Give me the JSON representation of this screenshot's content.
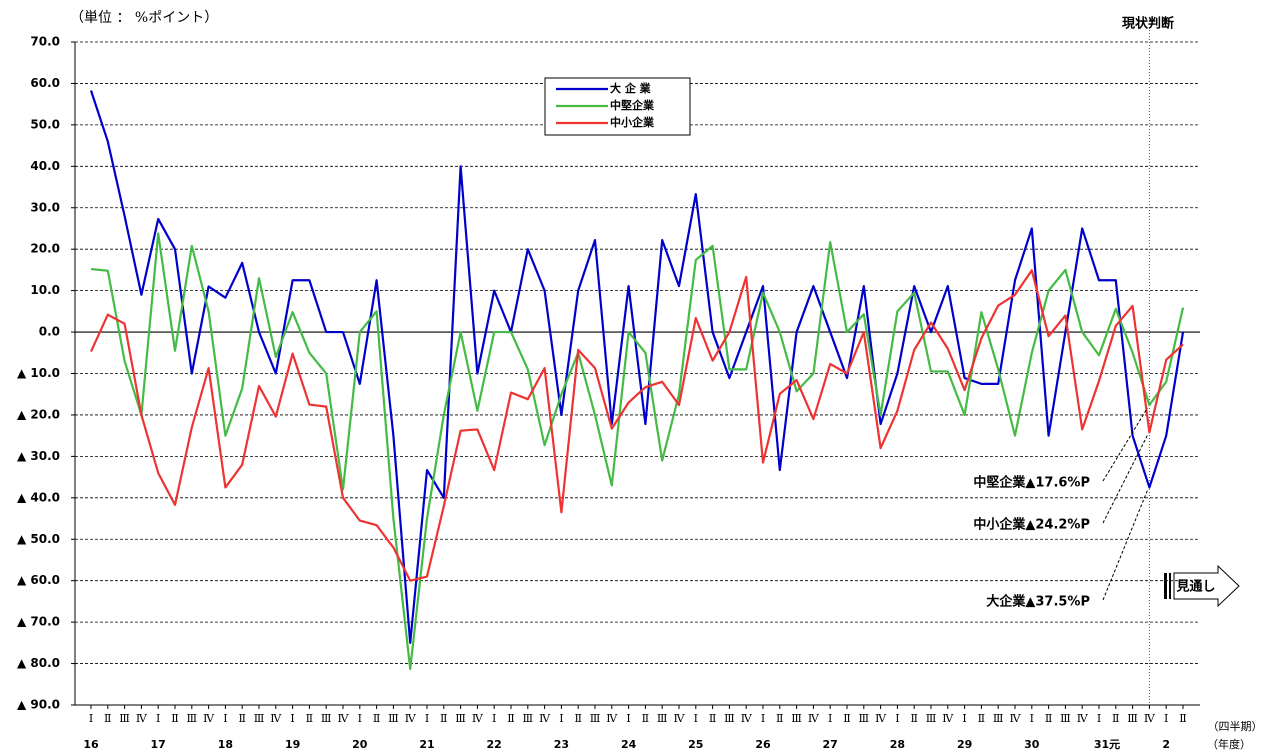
{
  "chart_data": {
    "type": "line",
    "unit_label": "（単位 ： %ポイント）",
    "current_label": "現状判断",
    "forecast_label": "見通し",
    "x_unit_labels": [
      "（四半期）",
      "（年度）"
    ],
    "categories": [
      "Ⅰ",
      "Ⅱ",
      "Ⅲ",
      "Ⅳ",
      "Ⅰ",
      "Ⅱ",
      "Ⅲ",
      "Ⅳ",
      "Ⅰ",
      "Ⅱ",
      "Ⅲ",
      "Ⅳ",
      "Ⅰ",
      "Ⅱ",
      "Ⅲ",
      "Ⅳ",
      "Ⅰ",
      "Ⅱ",
      "Ⅲ",
      "Ⅳ",
      "Ⅰ",
      "Ⅱ",
      "Ⅲ",
      "Ⅳ",
      "Ⅰ",
      "Ⅱ",
      "Ⅲ",
      "Ⅳ",
      "Ⅰ",
      "Ⅱ",
      "Ⅲ",
      "Ⅳ",
      "Ⅰ",
      "Ⅱ",
      "Ⅲ",
      "Ⅳ",
      "Ⅰ",
      "Ⅱ",
      "Ⅲ",
      "Ⅳ",
      "Ⅰ",
      "Ⅱ",
      "Ⅲ",
      "Ⅳ",
      "Ⅰ",
      "Ⅱ",
      "Ⅲ",
      "Ⅳ",
      "Ⅰ",
      "Ⅱ",
      "Ⅲ",
      "Ⅳ",
      "Ⅰ",
      "Ⅱ",
      "Ⅲ",
      "Ⅳ",
      "Ⅰ",
      "Ⅱ",
      "Ⅲ",
      "Ⅳ",
      "Ⅰ",
      "Ⅱ",
      "Ⅲ",
      "Ⅳ",
      "Ⅰ",
      "Ⅱ"
    ],
    "years": [
      "16",
      "17",
      "18",
      "19",
      "20",
      "21",
      "22",
      "23",
      "24",
      "25",
      "26",
      "27",
      "28",
      "29",
      "30",
      "31元",
      "2"
    ],
    "ylim": [
      -90,
      70
    ],
    "yticks": [
      70,
      {
        "value": 60,
        "label": "60.0"
      },
      {
        "value": 50,
        "label": "50.0"
      },
      {
        "value": 40,
        "label": "40.0"
      },
      {
        "value": 30,
        "label": "30.0"
      },
      {
        "value": 20,
        "label": "20.0"
      },
      {
        "value": 10,
        "label": "10.0"
      },
      {
        "value": 0,
        "label": "0.0"
      },
      {
        "value": -10,
        "label": "▲ 10.0"
      },
      {
        "value": -20,
        "label": "▲ 20.0"
      },
      {
        "value": -30,
        "label": "▲ 30.0"
      },
      {
        "value": -40,
        "label": "▲ 40.0"
      },
      {
        "value": -50,
        "label": "▲ 50.0"
      },
      {
        "value": -60,
        "label": "▲ 60.0"
      },
      {
        "value": -70,
        "label": "▲ 70.0"
      },
      {
        "value": -80,
        "label": "▲ 80.0"
      },
      {
        "value": -90,
        "label": "▲ 90.0"
      }
    ],
    "ytick_top_label": "70.0",
    "grid": true,
    "series": [
      {
        "name": "大 企 業",
        "color": "#0000cc",
        "values": [
          58.3,
          46,
          28,
          9,
          27.3,
          20,
          -10,
          11,
          8.3,
          16.7,
          0,
          -10,
          12.5,
          12.5,
          0,
          0,
          -12.5,
          12.5,
          -25,
          -75,
          -33.3,
          -40,
          40,
          -10,
          10,
          0,
          20,
          10,
          -20,
          10,
          22.2,
          -22.2,
          11.1,
          -22.2,
          22.2,
          11.1,
          33.3,
          0,
          -11.1,
          0,
          11.1,
          -33.3,
          0,
          11.1,
          0,
          -11.1,
          11.1,
          -22.2,
          -10,
          11.1,
          0,
          11.1,
          -11.1,
          -12.5,
          -12.5,
          12.5,
          25,
          -25,
          0,
          25,
          12.5,
          12.5,
          -25,
          -37.5,
          -25,
          0
        ]
      },
      {
        "name": "中堅企業",
        "color": "#44bb44",
        "values": [
          15.2,
          14.8,
          -7,
          -20,
          23.8,
          -4.5,
          20.8,
          5,
          -25,
          -13.6,
          13,
          -6,
          4.8,
          -5,
          -10,
          -38,
          0,
          5,
          -45,
          -81.3,
          -45,
          -20,
          0,
          -19,
          0,
          0,
          -9,
          -27.3,
          -15,
          -5,
          -20,
          -37,
          0,
          -5,
          -31,
          -15,
          17.4,
          20.8,
          -9,
          -9,
          9.5,
          0,
          -14.3,
          -10,
          21.7,
          0,
          4.3,
          -20,
          5,
          9.5,
          -9.5,
          -9.5,
          -20,
          4.8,
          -9,
          -25,
          -5,
          10,
          15,
          0,
          -5.6,
          5.6,
          -5,
          -17.6,
          -12,
          5.9
        ]
      },
      {
        "name": "中小企業",
        "color": "#ee3333",
        "values": [
          -4.7,
          4.2,
          2,
          -20,
          -34,
          -41.7,
          -23,
          -8.7,
          -37.5,
          -32,
          -13,
          -20.4,
          -5.2,
          -17.5,
          -18,
          -40,
          -45.5,
          -46.6,
          -52,
          -60,
          -59,
          -42,
          -23.8,
          -23.5,
          -33.3,
          -14.6,
          -16.2,
          -8.7,
          -43.5,
          -4.3,
          -8.7,
          -23.3,
          -17,
          -13.3,
          -12,
          -17.6,
          3.4,
          -6.9,
          0,
          13.3,
          -31.5,
          -14.9,
          -11.6,
          -21,
          -7.7,
          -10,
          0,
          -28,
          -19,
          -4.3,
          2.3,
          -4,
          -14,
          -1.5,
          6.4,
          9,
          14.9,
          -1,
          4,
          -23.5,
          -11.8,
          1.5,
          6.3,
          -24.2,
          -6.7,
          -3
        ]
      }
    ],
    "annotations": [
      {
        "text": "中堅企業▲17.6%P",
        "series": 1,
        "value": -17.6
      },
      {
        "text": "中小企業▲24.2%P",
        "series": 2,
        "value": -24.2
      },
      {
        "text": "大企業▲37.5%P",
        "series": 0,
        "value": -37.5
      }
    ]
  }
}
